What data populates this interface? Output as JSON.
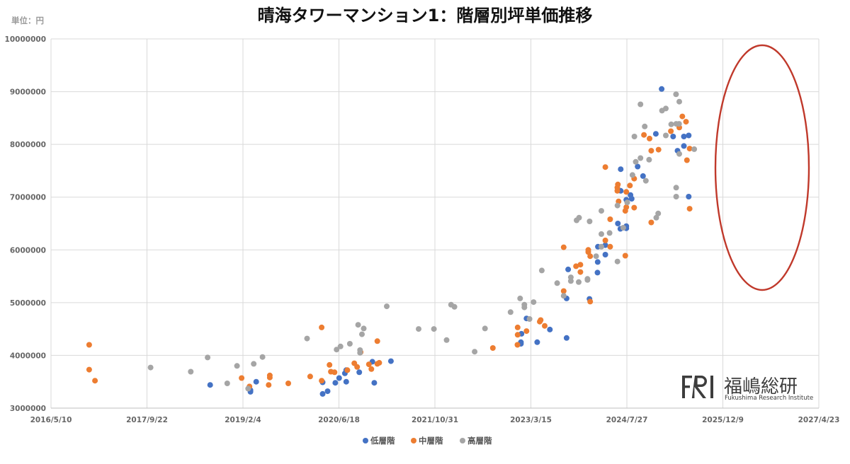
{
  "chart_data": {
    "type": "scatter",
    "title": "晴海タワーマンション1：階層別坪単価推移",
    "unit_label": "単位：円",
    "y_ticks": [
      "3000000",
      "4000000",
      "5000000",
      "6000000",
      "7000000",
      "8000000",
      "9000000",
      "10000000"
    ],
    "x_ticks": [
      "2016/5/10",
      "2017/9/22",
      "2019/2/4",
      "2020/6/18",
      "2021/10/31",
      "2023/3/15",
      "2024/7/27",
      "2025/12/9",
      "2027/4/23"
    ],
    "xlim": [
      "2016-05-10",
      "2027-04-23"
    ],
    "ylim": [
      3000000,
      10000000
    ],
    "grid": true,
    "legend_position": "bottom",
    "series": [
      {
        "name": "低層階",
        "color": "#4472c4",
        "points": [
          [
            "2018-08-17",
            3440000
          ],
          [
            "2019-03-15",
            3310000
          ],
          [
            "2019-03-15",
            3340000
          ],
          [
            "2019-04-14",
            3500000
          ],
          [
            "2020-03-25",
            3270000
          ],
          [
            "2020-03-25",
            3490000
          ],
          [
            "2020-04-20",
            3320000
          ],
          [
            "2020-05-30",
            3480000
          ],
          [
            "2020-06-19",
            3570000
          ],
          [
            "2020-07-19",
            3660000
          ],
          [
            "2020-07-26",
            3500000
          ],
          [
            "2020-07-26",
            3720000
          ],
          [
            "2020-10-02",
            3680000
          ],
          [
            "2020-12-09",
            3880000
          ],
          [
            "2020-12-19",
            3480000
          ],
          [
            "2021-03-16",
            3890000
          ],
          [
            "2023-01-22",
            4220000
          ],
          [
            "2023-01-22",
            4250000
          ],
          [
            "2023-01-25",
            4410000
          ],
          [
            "2023-02-20",
            4700000
          ],
          [
            "2023-04-17",
            4250000
          ],
          [
            "2023-06-22",
            4490000
          ],
          [
            "2023-09-17",
            4330000
          ],
          [
            "2023-09-17",
            5080000
          ],
          [
            "2023-09-25",
            5630000
          ],
          [
            "2024-01-14",
            5070000
          ],
          [
            "2024-02-25",
            5570000
          ],
          [
            "2024-02-26",
            5770000
          ],
          [
            "2024-02-27",
            6060000
          ],
          [
            "2024-04-06",
            6090000
          ],
          [
            "2024-04-06",
            5910000
          ],
          [
            "2024-06-10",
            6500000
          ],
          [
            "2024-06-23",
            6400000
          ],
          [
            "2024-06-25",
            7120000
          ],
          [
            "2024-06-25",
            7530000
          ],
          [
            "2024-07-24",
            6450000
          ],
          [
            "2024-07-24",
            6410000
          ],
          [
            "2024-07-24",
            6950000
          ],
          [
            "2024-08-15",
            7040000
          ],
          [
            "2024-08-21",
            6970000
          ],
          [
            "2024-09-21",
            7580000
          ],
          [
            "2024-10-19",
            7400000
          ],
          [
            "2024-12-25",
            8200000
          ],
          [
            "2025-01-24",
            9050000
          ],
          [
            "2025-03-25",
            8150000
          ],
          [
            "2025-04-17",
            7880000
          ],
          [
            "2025-05-20",
            8150000
          ],
          [
            "2025-05-20",
            7970000
          ],
          [
            "2025-06-14",
            8170000
          ],
          [
            "2025-06-14",
            7010000
          ]
        ]
      },
      {
        "name": "中層階",
        "color": "#ed7d31",
        "points": [
          [
            "2016-11-25",
            4200000
          ],
          [
            "2016-11-25",
            3730000
          ],
          [
            "2016-12-25",
            3520000
          ],
          [
            "2019-01-28",
            3570000
          ],
          [
            "2019-03-10",
            3410000
          ],
          [
            "2019-06-18",
            3440000
          ],
          [
            "2019-06-24",
            3620000
          ],
          [
            "2019-06-24",
            3580000
          ],
          [
            "2019-09-28",
            3470000
          ],
          [
            "2020-01-20",
            3600000
          ],
          [
            "2020-03-20",
            4530000
          ],
          [
            "2020-03-20",
            3520000
          ],
          [
            "2020-04-30",
            3820000
          ],
          [
            "2020-05-07",
            3690000
          ],
          [
            "2020-05-26",
            3680000
          ],
          [
            "2020-08-01",
            3720000
          ],
          [
            "2020-09-06",
            3850000
          ],
          [
            "2020-09-21",
            3780000
          ],
          [
            "2020-10-09",
            4060000
          ],
          [
            "2020-11-21",
            3830000
          ],
          [
            "2020-12-04",
            3740000
          ],
          [
            "2021-01-04",
            4270000
          ],
          [
            "2021-01-04",
            3840000
          ],
          [
            "2021-01-14",
            3860000
          ],
          [
            "2022-08-29",
            4140000
          ],
          [
            "2023-01-04",
            4200000
          ],
          [
            "2023-01-05",
            4390000
          ],
          [
            "2023-01-05",
            4530000
          ],
          [
            "2023-02-20",
            4460000
          ],
          [
            "2023-04-30",
            4640000
          ],
          [
            "2023-05-05",
            4670000
          ],
          [
            "2023-05-26",
            4560000
          ],
          [
            "2023-09-02",
            6050000
          ],
          [
            "2023-09-02",
            5220000
          ],
          [
            "2023-11-05",
            5690000
          ],
          [
            "2023-11-28",
            5720000
          ],
          [
            "2023-11-28",
            5580000
          ],
          [
            "2024-01-08",
            5960000
          ],
          [
            "2024-01-08",
            6000000
          ],
          [
            "2024-01-18",
            5880000
          ],
          [
            "2024-01-18",
            5020000
          ],
          [
            "2024-04-06",
            7570000
          ],
          [
            "2024-04-06",
            6180000
          ],
          [
            "2024-05-01",
            6580000
          ],
          [
            "2024-05-01",
            6060000
          ],
          [
            "2024-06-07",
            7180000
          ],
          [
            "2024-06-07",
            7120000
          ],
          [
            "2024-06-10",
            7240000
          ],
          [
            "2024-06-14",
            6920000
          ],
          [
            "2024-07-19",
            6740000
          ],
          [
            "2024-07-19",
            5890000
          ],
          [
            "2024-07-24",
            7100000
          ],
          [
            "2024-07-24",
            6810000
          ],
          [
            "2024-08-12",
            7220000
          ],
          [
            "2024-09-03",
            7350000
          ],
          [
            "2024-09-03",
            6800000
          ],
          [
            "2024-10-24",
            8180000
          ],
          [
            "2024-11-22",
            8110000
          ],
          [
            "2024-12-01",
            6520000
          ],
          [
            "2024-12-01",
            7880000
          ],
          [
            "2025-01-08",
            7900000
          ],
          [
            "2025-03-13",
            8250000
          ],
          [
            "2025-04-26",
            8320000
          ],
          [
            "2025-05-12",
            8530000
          ],
          [
            "2025-05-31",
            8430000
          ],
          [
            "2025-06-05",
            7700000
          ],
          [
            "2025-06-19",
            7920000
          ],
          [
            "2025-06-19",
            6780000
          ]
        ]
      },
      {
        "name": "高層階",
        "color": "#a5a5a5",
        "points": [
          [
            "2017-10-11",
            3770000
          ],
          [
            "2018-05-08",
            3690000
          ],
          [
            "2018-08-04",
            3960000
          ],
          [
            "2018-11-14",
            3470000
          ],
          [
            "2019-01-04",
            3800000
          ],
          [
            "2019-03-03",
            3370000
          ],
          [
            "2019-04-01",
            3840000
          ],
          [
            "2019-05-17",
            3970000
          ],
          [
            "2020-01-04",
            4320000
          ],
          [
            "2020-06-06",
            4110000
          ],
          [
            "2020-06-26",
            4170000
          ],
          [
            "2020-08-14",
            4220000
          ],
          [
            "2020-09-26",
            4580000
          ],
          [
            "2020-10-16",
            4400000
          ],
          [
            "2020-10-25",
            4510000
          ],
          [
            "2020-10-06",
            4100000
          ],
          [
            "2020-10-06",
            4050000
          ],
          [
            "2021-02-22",
            4930000
          ],
          [
            "2021-08-07",
            4500000
          ],
          [
            "2021-10-26",
            4500000
          ],
          [
            "2021-12-31",
            4290000
          ],
          [
            "2022-01-23",
            4960000
          ],
          [
            "2022-02-10",
            4920000
          ],
          [
            "2022-05-26",
            4070000
          ],
          [
            "2022-07-19",
            4510000
          ],
          [
            "2022-11-29",
            4820000
          ],
          [
            "2023-01-18",
            5080000
          ],
          [
            "2023-02-09",
            4960000
          ],
          [
            "2023-02-09",
            4910000
          ],
          [
            "2023-03-08",
            4690000
          ],
          [
            "2023-03-29",
            5010000
          ],
          [
            "2023-05-11",
            5610000
          ],
          [
            "2023-07-30",
            5370000
          ],
          [
            "2023-09-02",
            5130000
          ],
          [
            "2023-10-09",
            5480000
          ],
          [
            "2023-10-09",
            5410000
          ],
          [
            "2023-11-08",
            6560000
          ],
          [
            "2023-11-19",
            5390000
          ],
          [
            "2023-11-21",
            6610000
          ],
          [
            "2024-01-04",
            5430000
          ],
          [
            "2024-01-04",
            5450000
          ],
          [
            "2024-01-15",
            6540000
          ],
          [
            "2024-02-18",
            5880000
          ],
          [
            "2024-03-16",
            6300000
          ],
          [
            "2024-03-16",
            6740000
          ],
          [
            "2024-03-16",
            6060000
          ],
          [
            "2024-04-28",
            6320000
          ],
          [
            "2024-06-08",
            6840000
          ],
          [
            "2024-06-08",
            5780000
          ],
          [
            "2024-07-08",
            6420000
          ],
          [
            "2024-07-29",
            6900000
          ],
          [
            "2024-08-25",
            7420000
          ],
          [
            "2024-09-04",
            8150000
          ],
          [
            "2024-09-11",
            7670000
          ],
          [
            "2024-10-06",
            7740000
          ],
          [
            "2024-10-06",
            8760000
          ],
          [
            "2024-10-28",
            8340000
          ],
          [
            "2024-11-03",
            7310000
          ],
          [
            "2024-11-20",
            7710000
          ],
          [
            "2024-12-27",
            6610000
          ],
          [
            "2025-01-06",
            6690000
          ],
          [
            "2025-01-26",
            8640000
          ],
          [
            "2025-02-15",
            8680000
          ],
          [
            "2025-02-15",
            8170000
          ],
          [
            "2025-04-09",
            8950000
          ],
          [
            "2025-04-26",
            8810000
          ],
          [
            "2025-04-26",
            7820000
          ],
          [
            "2025-03-15",
            8380000
          ],
          [
            "2025-04-10",
            8390000
          ],
          [
            "2025-04-10",
            7180000
          ],
          [
            "2025-04-10",
            7010000
          ],
          [
            "2025-04-25",
            8390000
          ],
          [
            "2025-07-13",
            7910000
          ]
        ]
      }
    ],
    "annotation": "red-ellipse-highlight-recent"
  },
  "logo": {
    "mark": "FRI",
    "name": "福嶋総研",
    "sub": "Fukushima Research Institute"
  }
}
